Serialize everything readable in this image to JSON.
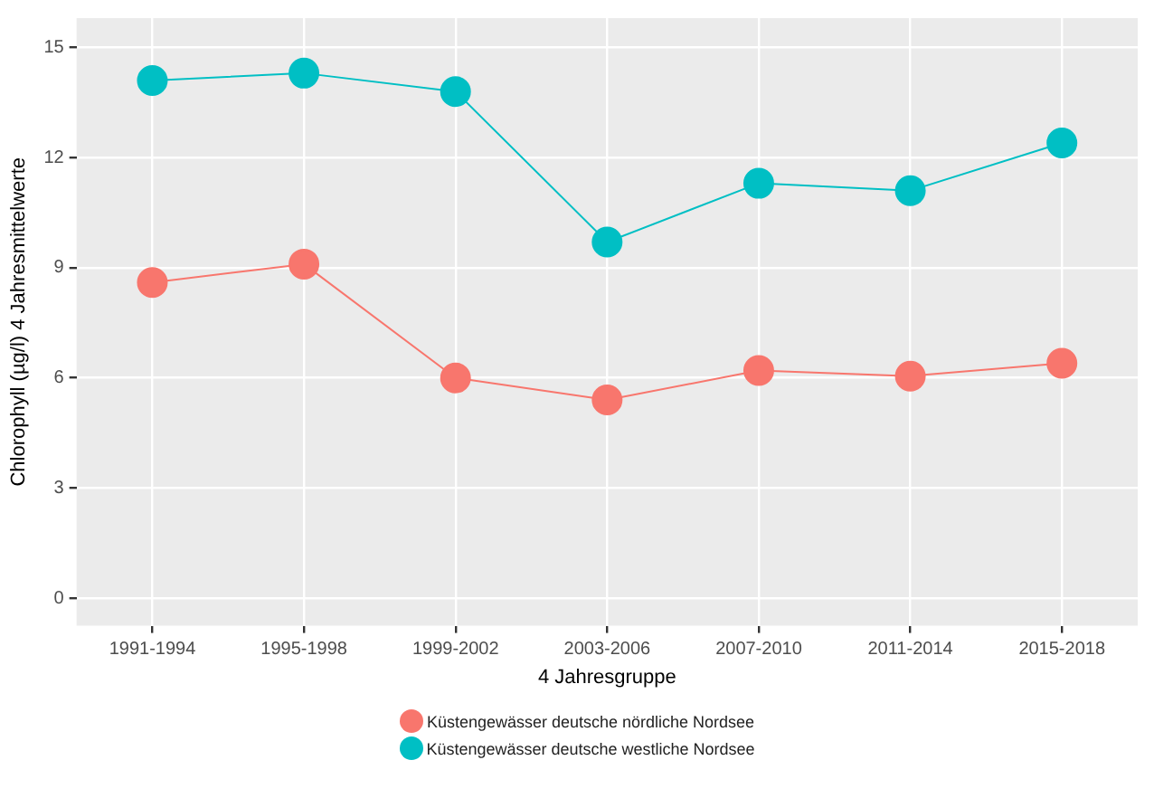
{
  "chart_data": {
    "type": "line",
    "xlabel": "4 Jahresgruppe",
    "ylabel": "Chlorophyll (µg/l) 4 Jahresmittelwerte",
    "categories": [
      "1991-1994",
      "1995-1998",
      "1999-2002",
      "2003-2006",
      "2007-2010",
      "2011-2014",
      "2015-2018"
    ],
    "series": [
      {
        "name": "Küstengewässer deutsche nördliche Nordsee",
        "color": "#f8766d",
        "values": [
          8.6,
          9.1,
          6.0,
          5.4,
          6.2,
          6.05,
          6.4
        ]
      },
      {
        "name": "Küstengewässer deutsche westliche Nordsee",
        "color": "#00bfc4",
        "values": [
          14.1,
          14.3,
          13.8,
          9.7,
          11.3,
          11.1,
          12.4
        ]
      }
    ],
    "ylim": [
      -0.75,
      15.8
    ],
    "yticks": [
      0,
      3,
      6,
      9,
      12,
      15
    ],
    "grid": true,
    "legend": "bottom",
    "marker": "circle",
    "line_style": "solid"
  }
}
